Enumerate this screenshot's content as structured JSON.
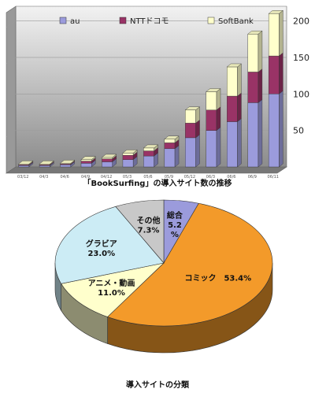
{
  "chart_data": [
    {
      "type": "bar",
      "stacked": true,
      "title": "「BookSurfing」の導入サイト数の推移",
      "categories": [
        "03/12",
        "04/3",
        "04/6",
        "04/9",
        "04/12",
        "05/3",
        "05/6",
        "05/9",
        "05/12",
        "06/3",
        "06/6",
        "06/9",
        "06/11"
      ],
      "series": [
        {
          "name": "au",
          "color": "#9b9bdc",
          "values": [
            2,
            2,
            3,
            5,
            7,
            10,
            15,
            25,
            40,
            50,
            62,
            88,
            100
          ]
        },
        {
          "name": "NTTドコモ",
          "color": "#993366",
          "values": [
            1,
            1,
            1,
            3,
            4,
            6,
            7,
            8,
            20,
            28,
            35,
            42,
            52
          ]
        },
        {
          "name": "SoftBank",
          "color": "#ffffcc",
          "values": [
            1,
            1,
            1,
            2,
            2,
            3,
            4,
            5,
            18,
            25,
            40,
            52,
            58
          ]
        }
      ],
      "yticks": [
        50,
        100,
        150,
        200
      ],
      "ylim": [
        0,
        220
      ],
      "legend_position": "top",
      "grid": true
    },
    {
      "type": "pie",
      "title": "導入サイトの分類",
      "slices": [
        {
          "label": "総合",
          "value": 5.2,
          "color": "#9b9bdc",
          "text": "総合\n5.2\n%"
        },
        {
          "label": "コミック",
          "value": 53.4,
          "color": "#f39a2a",
          "text": "コミック　53.4%"
        },
        {
          "label": "アニメ・動画",
          "value": 11.0,
          "color": "#ffffcc",
          "text": "アニメ・動画\n11.0%"
        },
        {
          "label": "グラビア",
          "value": 23.0,
          "color": "#ccecf5",
          "text": "グラビア\n23.0%"
        },
        {
          "label": "その他",
          "value": 7.3,
          "color": "#c8c8c8",
          "text": "その他\n7.3%"
        }
      ]
    }
  ]
}
